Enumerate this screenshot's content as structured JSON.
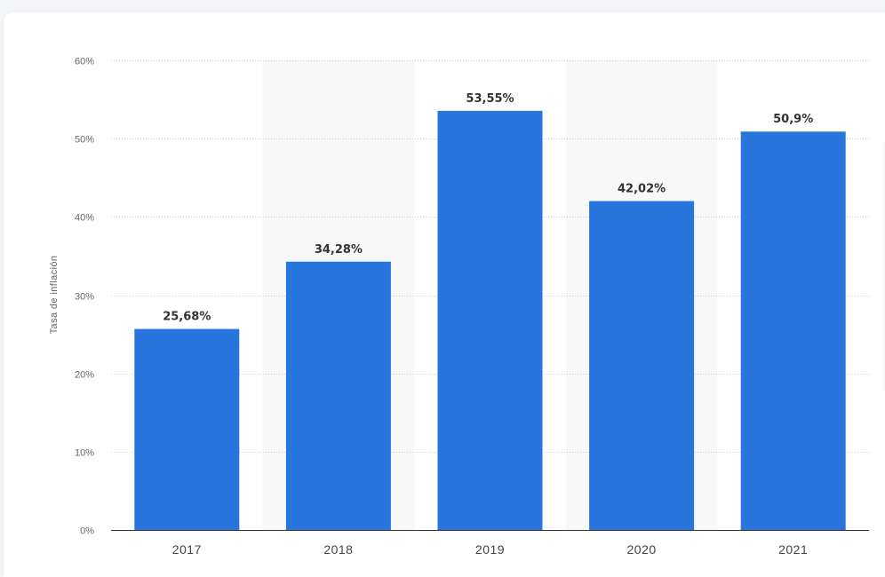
{
  "chart_data": {
    "type": "bar",
    "categories": [
      "2017",
      "2018",
      "2019",
      "2020",
      "2021"
    ],
    "values": [
      25.68,
      34.28,
      53.55,
      42.02,
      50.9
    ],
    "data_labels": [
      "25,68%",
      "34,28%",
      "53,55%",
      "42,02%",
      "50,9%"
    ],
    "title": "",
    "xlabel": "",
    "ylabel": "Tasa de inflación",
    "ylim": [
      0,
      60
    ],
    "y_ticks": [
      0,
      10,
      20,
      30,
      40,
      50,
      60
    ],
    "y_tick_labels": [
      "0%",
      "10%",
      "20%",
      "30%",
      "40%",
      "50%",
      "60%"
    ],
    "grid": true,
    "legend": "none",
    "colors": {
      "bar": "#2876dd",
      "alt_band": "#f8f8f8",
      "grid": "#cccccc",
      "axis": "#333333"
    }
  }
}
